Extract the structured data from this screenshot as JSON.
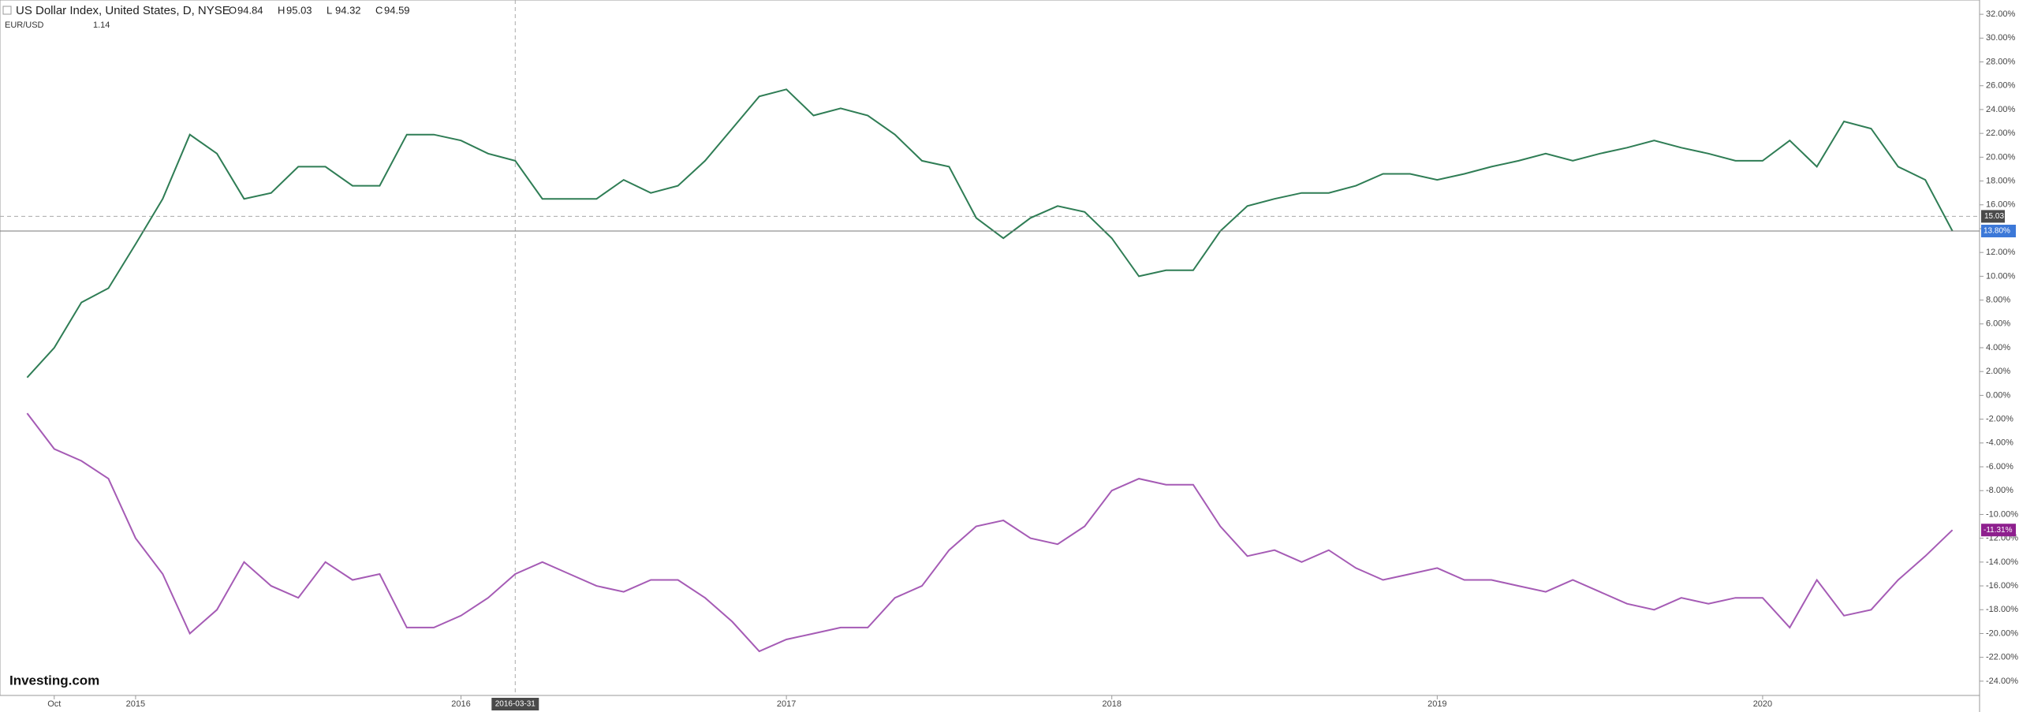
{
  "chart_data": {
    "type": "line",
    "title": "US Dollar Index, United States, D, NYSE",
    "ohlc": [
      {
        "label": "O",
        "value": 94.84
      },
      {
        "label": "H",
        "value": 95.03
      },
      {
        "label": "L",
        "value": 94.32
      },
      {
        "label": "C",
        "value": 94.59
      }
    ],
    "compare_name": "EUR/USD",
    "compare_price": 1.14,
    "watermark": "Investing.com",
    "x": [
      "2014-09",
      "2014-10",
      "2014-11",
      "2014-12",
      "2015-01",
      "2015-02",
      "2015-03",
      "2015-04",
      "2015-05",
      "2015-06",
      "2015-07",
      "2015-08",
      "2015-09",
      "2015-10",
      "2015-11",
      "2015-12",
      "2016-01",
      "2016-02",
      "2016-03",
      "2016-04",
      "2016-05",
      "2016-06",
      "2016-07",
      "2016-08",
      "2016-09",
      "2016-10",
      "2016-11",
      "2016-12",
      "2017-01",
      "2017-02",
      "2017-03",
      "2017-04",
      "2017-05",
      "2017-06",
      "2017-07",
      "2017-08",
      "2017-09",
      "2017-10",
      "2017-11",
      "2017-12",
      "2018-01",
      "2018-02",
      "2018-03",
      "2018-04",
      "2018-05",
      "2018-06",
      "2018-07",
      "2018-08",
      "2018-09",
      "2018-10",
      "2018-11",
      "2018-12",
      "2019-01",
      "2019-02",
      "2019-03",
      "2019-04",
      "2019-05",
      "2019-06",
      "2019-07",
      "2019-08",
      "2019-09",
      "2019-10",
      "2019-11",
      "2019-12",
      "2020-01",
      "2020-02",
      "2020-03",
      "2020-04",
      "2020-05",
      "2020-06",
      "2020-07",
      "2020-08"
    ],
    "series": [
      {
        "name": "US Dollar Index",
        "color": "#2f7d55",
        "end_label": "13.80%",
        "end_color": "#3c78d8",
        "values": [
          1.5,
          4,
          7.8,
          9,
          12.7,
          16.5,
          21.9,
          20.3,
          16.5,
          17,
          19.2,
          19.2,
          17.6,
          17.6,
          21.9,
          21.9,
          21.4,
          20.3,
          19.7,
          16.5,
          16.5,
          16.5,
          18.1,
          17,
          17.6,
          19.7,
          22.4,
          25.1,
          25.7,
          23.5,
          24.1,
          23.5,
          21.9,
          19.7,
          19.2,
          14.9,
          13.2,
          14.9,
          15.9,
          15.4,
          13.2,
          10,
          10.5,
          10.5,
          13.8,
          15.9,
          16.5,
          17,
          17,
          17.6,
          18.6,
          18.6,
          18.1,
          18.6,
          19.2,
          19.7,
          20.3,
          19.7,
          20.3,
          20.8,
          21.4,
          20.8,
          20.3,
          19.7,
          19.7,
          21.4,
          19.2,
          23,
          22.4,
          19.2,
          18.1,
          13.8
        ]
      },
      {
        "name": "EUR/USD",
        "color": "#a55bb5",
        "end_label": "-11.31%",
        "end_color": "#8e1f8e",
        "values": [
          -1.5,
          -4.5,
          -5.5,
          -7,
          -12,
          -15,
          -20,
          -18,
          -14,
          -16,
          -17,
          -14,
          -15.5,
          -15,
          -19.5,
          -19.5,
          -18.5,
          -17,
          -15,
          -14,
          -15,
          -16,
          -16.5,
          -15.5,
          -15.5,
          -17,
          -19,
          -21.5,
          -20.5,
          -20,
          -19.5,
          -19.5,
          -17,
          -16,
          -13,
          -11,
          -10.5,
          -12,
          -12.5,
          -11,
          -8,
          -7,
          -7.5,
          -7.5,
          -11,
          -13.5,
          -13,
          -14,
          -13,
          -14.5,
          -15.5,
          -15,
          -14.5,
          -15.5,
          -15.5,
          -16,
          -16.5,
          -15.5,
          -16.5,
          -17.5,
          -18,
          -17,
          -17.5,
          -17,
          -17,
          -19.5,
          -15.5,
          -18.5,
          -18,
          -15.5,
          -13.5,
          -11.31
        ]
      }
    ],
    "xlim": [
      "2014-08",
      "2020-09"
    ],
    "xticks": [
      {
        "value": "2014-10",
        "label": "Oct"
      },
      {
        "value": "2015-01",
        "label": "2015"
      },
      {
        "value": "2016-01",
        "label": "2016"
      },
      {
        "value": "2017-01",
        "label": "2017"
      },
      {
        "value": "2018-01",
        "label": "2018"
      },
      {
        "value": "2019-01",
        "label": "2019"
      },
      {
        "value": "2020-01",
        "label": "2020"
      }
    ],
    "ylim": [
      -25.2,
      33.2
    ],
    "yticks": [
      {
        "value": -24,
        "label": "-24.00%"
      },
      {
        "value": -22,
        "label": "-22.00%"
      },
      {
        "value": -20,
        "label": "-20.00%"
      },
      {
        "value": -18,
        "label": "-18.00%"
      },
      {
        "value": -16,
        "label": "-16.00%"
      },
      {
        "value": -14,
        "label": "-14.00%"
      },
      {
        "value": -12,
        "label": "-12.00%"
      },
      {
        "value": -10,
        "label": "-10.00%"
      },
      {
        "value": -8,
        "label": "-8.00%"
      },
      {
        "value": -6,
        "label": "-6.00%"
      },
      {
        "value": -4,
        "label": "-4.00%"
      },
      {
        "value": -2,
        "label": "-2.00%"
      },
      {
        "value": 0,
        "label": "0.00%"
      },
      {
        "value": 2,
        "label": "2.00%"
      },
      {
        "value": 4,
        "label": "4.00%"
      },
      {
        "value": 6,
        "label": "6.00%"
      },
      {
        "value": 8,
        "label": "8.00%"
      },
      {
        "value": 10,
        "label": "10.00%"
      },
      {
        "value": 12,
        "label": "12.00%"
      },
      {
        "value": 14,
        "label": "14.00%"
      },
      {
        "value": 16,
        "label": "16.00%"
      },
      {
        "value": 18,
        "label": "18.00%"
      },
      {
        "value": 20,
        "label": "20.00%"
      },
      {
        "value": 22,
        "label": "22.00%"
      },
      {
        "value": 24,
        "label": "24.00%"
      },
      {
        "value": 26,
        "label": "26.00%"
      },
      {
        "value": 28,
        "label": "28.00%"
      },
      {
        "value": 30,
        "label": "30.00%"
      },
      {
        "value": 32,
        "label": "32.00%"
      }
    ],
    "crosshair": {
      "x": "2016-03",
      "x_label": "2016-03-31",
      "y": 15.03,
      "y_label": "15.03"
    }
  }
}
